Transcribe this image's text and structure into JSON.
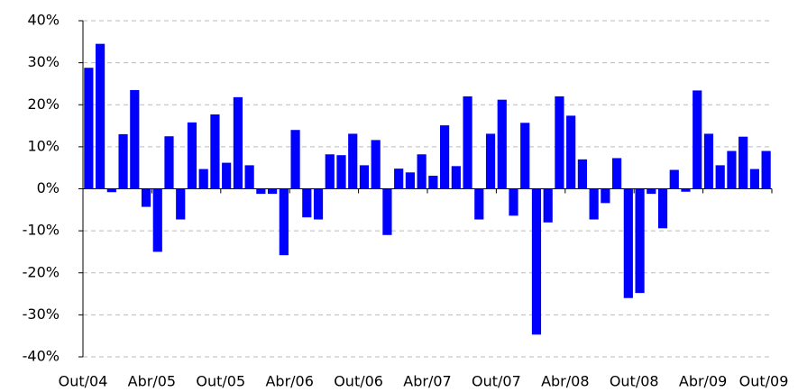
{
  "chart_data": {
    "type": "bar",
    "color": "#0000ff",
    "grid": true,
    "values": [
      28.8,
      34.5,
      -0.8,
      13,
      23.5,
      -4.3,
      -15,
      12.5,
      -7.3,
      15.8,
      4.7,
      17.7,
      6.2,
      21.8,
      5.6,
      -1.2,
      -1.2,
      -15.8,
      14,
      -6.8,
      -7.3,
      8.2,
      8,
      13.1,
      5.6,
      11.6,
      -11,
      4.8,
      3.9,
      8.2,
      3.1,
      15.1,
      5.4,
      22,
      -7.3,
      13.1,
      21.2,
      -6.4,
      15.7,
      -34.7,
      -8,
      22,
      17.4,
      7,
      -7.3,
      -3.4,
      7.3,
      -26,
      -24.8,
      -1.2,
      -9.4,
      4.5,
      -0.7,
      23.4,
      13.1,
      5.6,
      9,
      12.4,
      4.7,
      9
    ],
    "ylim": [
      -40,
      40
    ],
    "yticks": [
      {
        "value": -40,
        "label": "-40%"
      },
      {
        "value": -30,
        "label": "-30%"
      },
      {
        "value": -20,
        "label": "-20%"
      },
      {
        "value": -10,
        "label": "-10%"
      },
      {
        "value": 0,
        "label": "0%"
      },
      {
        "value": 10,
        "label": "10%"
      },
      {
        "value": 20,
        "label": "20%"
      },
      {
        "value": 30,
        "label": "30%"
      },
      {
        "value": 40,
        "label": "40%"
      }
    ],
    "xticks": [
      {
        "value": 0,
        "label": "Out/04"
      },
      {
        "value": 6,
        "label": "Abr/05"
      },
      {
        "value": 12,
        "label": "Out/05"
      },
      {
        "value": 18,
        "label": "Abr/06"
      },
      {
        "value": 24,
        "label": "Out/06"
      },
      {
        "value": 30,
        "label": "Abr/07"
      },
      {
        "value": 36,
        "label": "Out/07"
      },
      {
        "value": 42,
        "label": "Abr/08"
      },
      {
        "value": 48,
        "label": "Out/08"
      },
      {
        "value": 54,
        "label": "Abr/09"
      },
      {
        "value": 60,
        "label": "Out/09"
      }
    ]
  }
}
